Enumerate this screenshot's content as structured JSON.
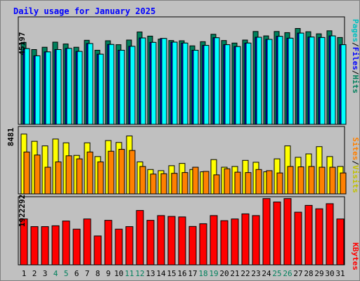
{
  "title": "Daily usage for January 2025",
  "colors": {
    "frame": "#c0c0c0",
    "hits": "#00805c",
    "files": "#0000ff",
    "pages": "#00ffff",
    "visits": "#ffff00",
    "sites": "#ff8000",
    "kbytes": "#ff0000",
    "weekday_label": "#000000",
    "weekend_label": "#00805c"
  },
  "chart_data": [
    {
      "type": "bar",
      "panel": "hits-files-pages",
      "scale_label": "45197",
      "categories": [
        "1",
        "2",
        "3",
        "4",
        "5",
        "6",
        "7",
        "8",
        "9",
        "10",
        "11",
        "12",
        "13",
        "14",
        "15",
        "16",
        "17",
        "18",
        "19",
        "20",
        "21",
        "22",
        "23",
        "24",
        "25",
        "26",
        "27",
        "28",
        "29",
        "30",
        "31"
      ],
      "weekend_days": [
        "4",
        "5",
        "11",
        "12",
        "18",
        "19",
        "25",
        "26"
      ],
      "ylim": [
        0,
        45197
      ],
      "series": [
        {
          "name": "Hits",
          "values": [
            35400,
            32300,
            33300,
            35500,
            34700,
            33300,
            36300,
            32000,
            36100,
            34400,
            36400,
            39900,
            38100,
            36800,
            36200,
            36100,
            33900,
            35700,
            38900,
            36200,
            35100,
            36400,
            40100,
            38200,
            40100,
            39600,
            41400,
            40000,
            39100,
            40400,
            37500
          ]
        },
        {
          "name": "Files",
          "values": [
            32700,
            29600,
            31300,
            32300,
            32800,
            31500,
            34900,
            30300,
            34500,
            32000,
            33700,
            37300,
            35400,
            37100,
            35500,
            35100,
            32000,
            34100,
            37400,
            34400,
            33600,
            35100,
            37600,
            36700,
            38000,
            37200,
            39400,
            37700,
            37500,
            38200,
            34400
          ]
        },
        {
          "name": "Pages",
          "values": [
            32700,
            29600,
            31300,
            32300,
            32800,
            31500,
            34900,
            30300,
            34500,
            32000,
            33700,
            37300,
            35400,
            37100,
            35500,
            35100,
            32000,
            34100,
            37400,
            34400,
            33600,
            35100,
            37600,
            36700,
            38000,
            37200,
            39400,
            37700,
            37500,
            38200,
            34400
          ]
        }
      ]
    },
    {
      "type": "bar",
      "panel": "visits-sites",
      "scale_label": "8481",
      "categories": [
        "1",
        "2",
        "3",
        "4",
        "5",
        "6",
        "7",
        "8",
        "9",
        "10",
        "11",
        "12",
        "13",
        "14",
        "15",
        "16",
        "17",
        "18",
        "19",
        "20",
        "21",
        "22",
        "23",
        "24",
        "25",
        "26",
        "27",
        "28",
        "29",
        "30",
        "31"
      ],
      "ylim": [
        0,
        8481
      ],
      "series": [
        {
          "name": "Visits",
          "values": [
            7850,
            6900,
            6300,
            7200,
            6700,
            5050,
            6700,
            4900,
            7000,
            6750,
            7600,
            4200,
            3200,
            3050,
            3700,
            4000,
            3200,
            2900,
            4500,
            3500,
            3600,
            4400,
            4150,
            2900,
            4600,
            6300,
            4800,
            5250,
            6200,
            4900,
            3600
          ]
        },
        {
          "name": "Sites",
          "values": [
            5500,
            5100,
            3500,
            4200,
            5000,
            4600,
            5500,
            4200,
            5600,
            5850,
            5700,
            3600,
            2600,
            2650,
            2700,
            2800,
            3500,
            2950,
            2500,
            3300,
            2850,
            2800,
            3200,
            3050,
            2750,
            3600,
            3550,
            3600,
            3500,
            3500,
            2750
          ]
        }
      ]
    },
    {
      "type": "bar",
      "panel": "kbytes",
      "scale_label": "1922292",
      "categories": [
        "1",
        "2",
        "3",
        "4",
        "5",
        "6",
        "7",
        "8",
        "9",
        "10",
        "11",
        "12",
        "13",
        "14",
        "15",
        "16",
        "17",
        "18",
        "19",
        "20",
        "21",
        "22",
        "23",
        "24",
        "25",
        "26",
        "27",
        "28",
        "29",
        "30",
        "31"
      ],
      "ylim": [
        0,
        1922292
      ],
      "series": [
        {
          "name": "KBytes",
          "values": [
            1350000,
            1125000,
            1125000,
            1150000,
            1290000,
            1050000,
            1350000,
            850000,
            1310000,
            1050000,
            1125000,
            1600000,
            1310000,
            1450000,
            1425000,
            1410000,
            1130000,
            1210000,
            1450000,
            1300000,
            1350000,
            1500000,
            1450000,
            1950000,
            1850000,
            1950000,
            1550000,
            1750000,
            1650000,
            1800000,
            1350000
          ]
        }
      ]
    }
  ],
  "legend": {
    "top": {
      "a": "Pages",
      "b": "Files",
      "c": "Hits",
      "sep": "/"
    },
    "middle": {
      "a": "Sites",
      "b": "Visits",
      "sep": "/"
    },
    "bottom": {
      "a": "KBytes"
    }
  }
}
